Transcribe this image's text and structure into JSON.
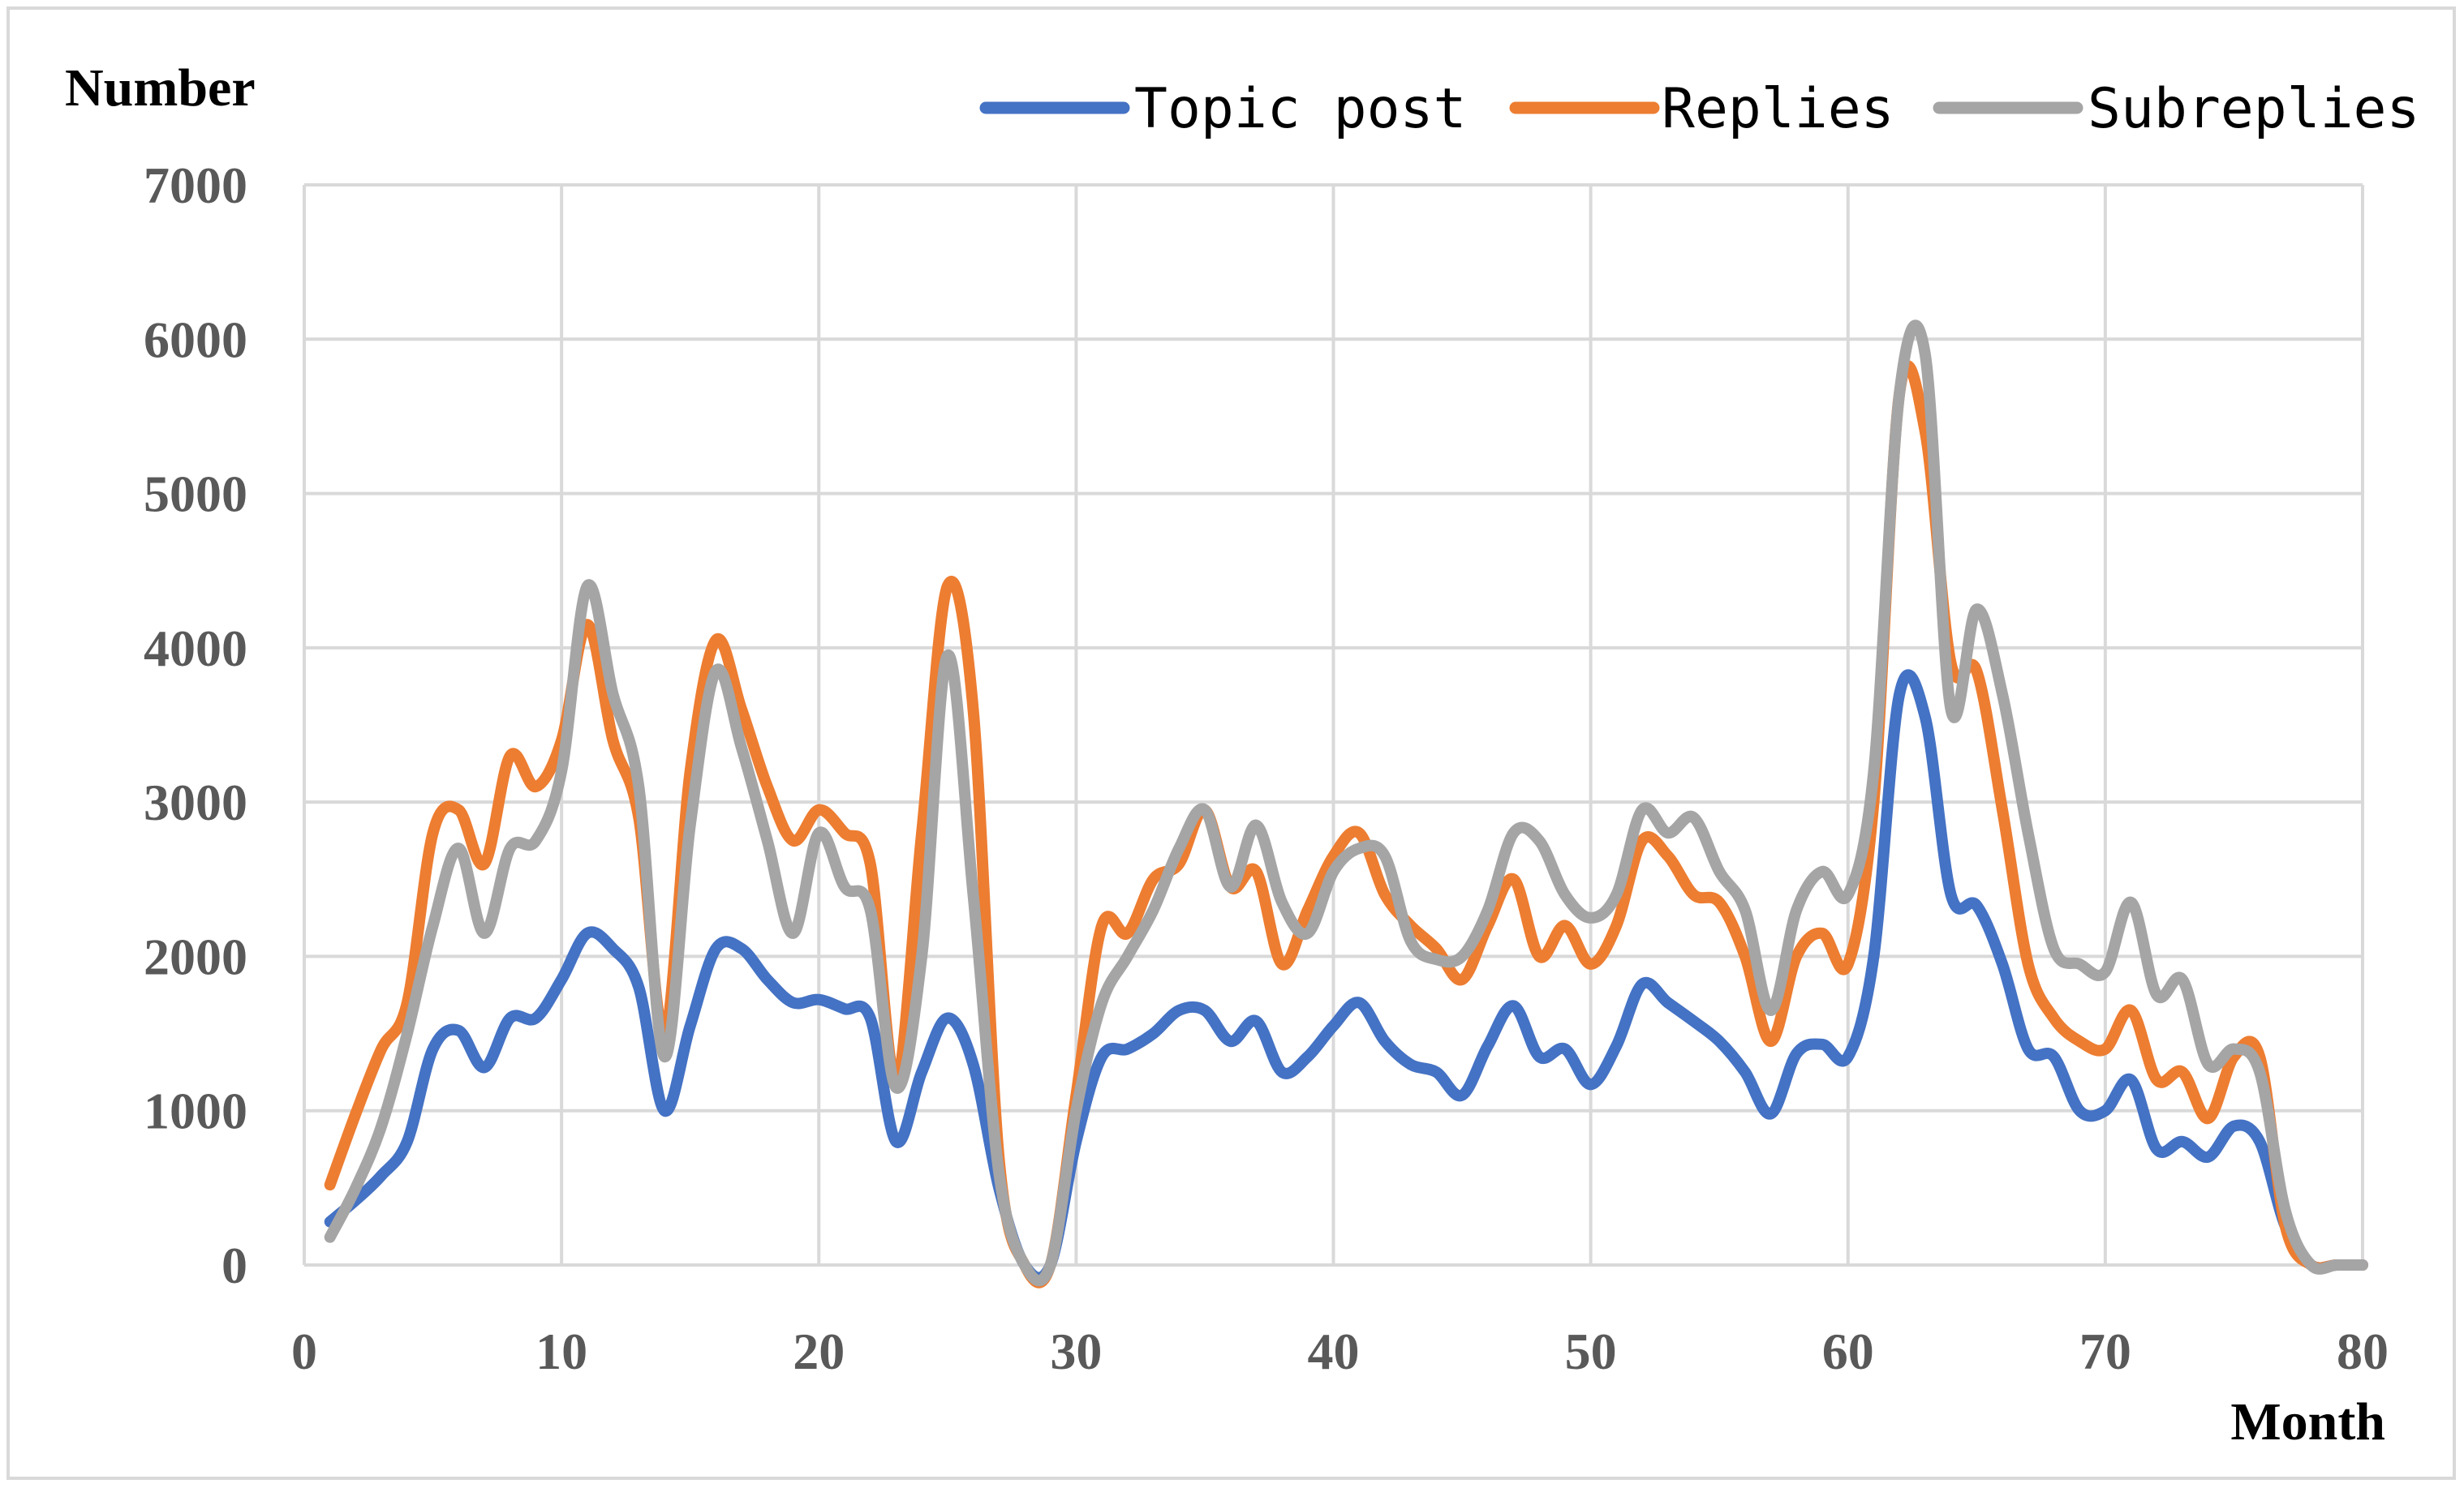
{
  "chart_data": {
    "type": "line",
    "title": "",
    "xlabel": "Month",
    "ylabel": "Number",
    "xlim": [
      0,
      80
    ],
    "ylim": [
      0,
      7000
    ],
    "xticks": [
      0,
      10,
      20,
      30,
      40,
      50,
      60,
      70,
      80
    ],
    "yticks": [
      0,
      1000,
      2000,
      3000,
      4000,
      5000,
      6000,
      7000
    ],
    "grid": true,
    "legend_position": "top-right",
    "x": [
      1,
      2,
      3,
      4,
      5,
      6,
      7,
      8,
      9,
      10,
      11,
      12,
      13,
      14,
      15,
      16,
      17,
      18,
      19,
      20,
      21,
      22,
      23,
      24,
      25,
      26,
      27,
      28,
      29,
      30,
      31,
      32,
      33,
      34,
      35,
      36,
      37,
      38,
      39,
      40,
      41,
      42,
      43,
      44,
      45,
      46,
      47,
      48,
      49,
      50,
      51,
      52,
      53,
      54,
      55,
      56,
      57,
      58,
      59,
      60,
      61,
      62,
      63,
      64,
      65,
      66,
      67,
      68,
      69,
      70,
      71,
      72,
      73,
      74,
      75,
      76,
      77,
      78,
      79,
      80
    ],
    "series": [
      {
        "name": "Topic post",
        "color": "#4472c4",
        "values": [
          280,
          420,
          580,
          800,
          1400,
          1520,
          1280,
          1600,
          1600,
          1850,
          2150,
          2050,
          1800,
          1000,
          1550,
          2050,
          2050,
          1850,
          1700,
          1720,
          1660,
          1600,
          800,
          1250,
          1600,
          1300,
          500,
          0,
          0,
          800,
          1350,
          1400,
          1500,
          1650,
          1650,
          1450,
          1580,
          1250,
          1350,
          1550,
          1700,
          1450,
          1300,
          1250,
          1100,
          1420,
          1680,
          1350,
          1400,
          1170,
          1420,
          1820,
          1700,
          1580,
          1450,
          1250,
          980,
          1370,
          1430,
          1350,
          2000,
          3700,
          3550,
          2400,
          2330,
          1950,
          1400,
          1350,
          1000,
          1000,
          1200,
          750,
          800,
          700,
          900,
          800,
          250,
          0,
          0,
          0
        ]
      },
      {
        "name": "Replies",
        "color": "#ed7d31",
        "values": [
          520,
          980,
          1400,
          1700,
          2800,
          2950,
          2600,
          3300,
          3100,
          3400,
          4150,
          3400,
          2900,
          1500,
          3200,
          4050,
          3600,
          3100,
          2750,
          2950,
          2800,
          2600,
          1200,
          2800,
          4400,
          3600,
          700,
          0,
          0,
          1100,
          2200,
          2150,
          2500,
          2600,
          2950,
          2450,
          2550,
          1950,
          2300,
          2650,
          2800,
          2400,
          2200,
          2050,
          1850,
          2200,
          2500,
          2000,
          2200,
          1950,
          2200,
          2750,
          2650,
          2400,
          2350,
          2000,
          1450,
          2000,
          2150,
          1950,
          3000,
          5650,
          5400,
          3900,
          3850,
          2950,
          1950,
          1600,
          1450,
          1400,
          1650,
          1200,
          1250,
          950,
          1350,
          1350,
          250,
          0,
          0,
          0
        ]
      },
      {
        "name": "Subreplies",
        "color": "#a5a5a5",
        "values": [
          180,
          500,
          900,
          1500,
          2200,
          2700,
          2150,
          2700,
          2750,
          3200,
          4400,
          3700,
          3100,
          1350,
          2850,
          3850,
          3350,
          2750,
          2150,
          2800,
          2450,
          2300,
          1150,
          2000,
          3950,
          2400,
          600,
          0,
          0,
          1000,
          1700,
          2000,
          2300,
          2700,
          2950,
          2450,
          2850,
          2350,
          2150,
          2550,
          2700,
          2650,
          2100,
          1980,
          2000,
          2300,
          2800,
          2750,
          2400,
          2250,
          2400,
          2950,
          2800,
          2900,
          2550,
          2300,
          1650,
          2300,
          2550,
          2400,
          3200,
          5650,
          5900,
          3600,
          4250,
          3700,
          2800,
          2050,
          1950,
          1900,
          2350,
          1750,
          1850,
          1300,
          1400,
          1250,
          350,
          0,
          0,
          0
        ]
      }
    ]
  }
}
